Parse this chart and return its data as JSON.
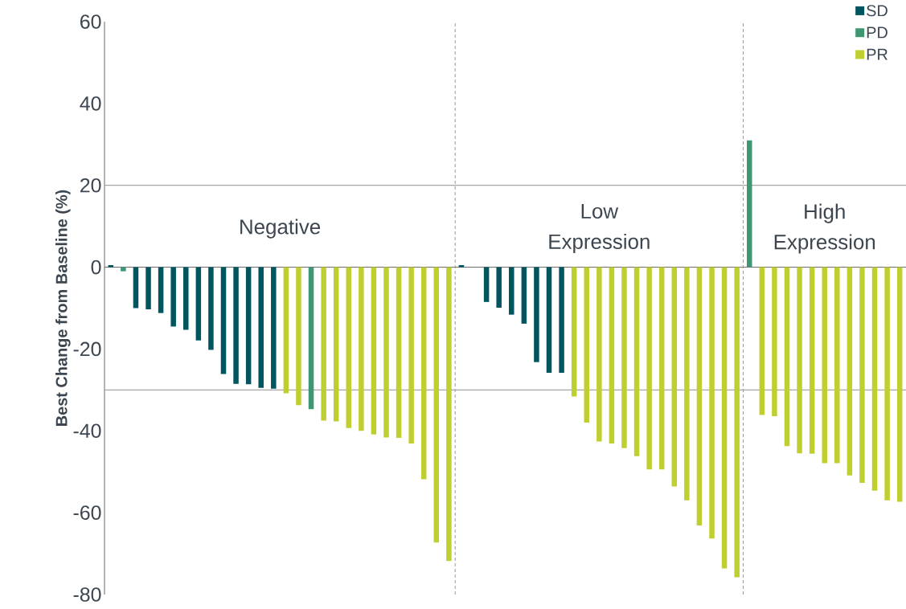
{
  "chart_data": {
    "type": "bar",
    "ylabel": "Best Change from Baseline (%)",
    "categories": [
      null,
      null,
      null,
      null,
      null,
      null,
      null,
      null,
      null,
      null,
      null,
      null,
      null,
      null,
      null,
      null,
      null,
      null,
      null,
      null,
      null,
      null,
      null,
      null,
      null,
      null,
      null,
      null,
      null,
      null,
      null,
      null,
      null,
      null,
      null,
      null,
      null,
      null,
      null,
      null,
      null,
      null,
      null,
      null,
      null,
      null,
      null,
      null,
      null,
      null,
      null,
      null,
      null,
      null,
      null,
      null,
      null,
      null,
      null,
      null,
      null,
      null,
      null,
      null
    ],
    "series": [
      {
        "name": "SD",
        "color": "#00555f",
        "values": [
          0.5,
          null,
          -10.0,
          -10.3,
          -11.2,
          -14.5,
          -15.3,
          -17.9,
          -20.2,
          -26.1,
          -28.5,
          -28.6,
          -29.5,
          -29.7,
          null,
          null,
          null,
          null,
          null,
          null,
          null,
          null,
          null,
          null,
          null,
          null,
          null,
          null,
          0.5,
          0,
          -8.5,
          -9.9,
          -11.6,
          -13.8,
          -23.2,
          -25.8,
          -25.8,
          null,
          null,
          null,
          null,
          null,
          null,
          null,
          null,
          null,
          null,
          null,
          null,
          null,
          null,
          null,
          null,
          null,
          null,
          null,
          null,
          null,
          null,
          null,
          null,
          null,
          null,
          null
        ]
      },
      {
        "name": "PD",
        "color": "#3e9673",
        "values": [
          null,
          -1.0,
          null,
          null,
          null,
          null,
          null,
          null,
          null,
          null,
          null,
          null,
          null,
          null,
          null,
          null,
          -34.7,
          null,
          null,
          null,
          null,
          null,
          null,
          null,
          null,
          null,
          null,
          null,
          null,
          null,
          null,
          null,
          null,
          null,
          null,
          null,
          null,
          null,
          null,
          null,
          null,
          null,
          null,
          null,
          null,
          null,
          null,
          null,
          null,
          null,
          null,
          31.0,
          null,
          null,
          null,
          null,
          null,
          null,
          null,
          null,
          null,
          null,
          null,
          null
        ]
      },
      {
        "name": "PR",
        "color": "#c0cf30",
        "values": [
          null,
          null,
          null,
          null,
          null,
          null,
          null,
          null,
          null,
          null,
          null,
          null,
          null,
          null,
          -30.8,
          -33.7,
          null,
          -37.5,
          -37.7,
          -39.3,
          -40.0,
          -40.9,
          -41.6,
          -41.7,
          -43.1,
          -51.8,
          -67.3,
          -71.8,
          null,
          null,
          null,
          null,
          null,
          null,
          null,
          null,
          null,
          -31.6,
          -38.0,
          -42.6,
          -43.1,
          -44.2,
          -46.2,
          -49.4,
          -49.4,
          -53.6,
          -57.0,
          -63.1,
          -66.3,
          -73.6,
          -75.8,
          null,
          -36.1,
          -36.4,
          -43.7,
          -45.5,
          -45.6,
          -47.9,
          -47.9,
          -50.9,
          -52.7,
          -54.6,
          -57.0,
          -57.3
        ]
      }
    ],
    "stacked": true,
    "ylim": [
      -80,
      60
    ],
    "yticks": [
      -80,
      -60,
      -40,
      -20,
      0,
      20,
      40,
      60
    ],
    "tick_labels": "y",
    "legend": "top right",
    "ref_lines": [
      {
        "axis": "y",
        "value": 20,
        "color": "#a6a6a6"
      },
      {
        "axis": "y",
        "value": -30,
        "color": "#a6a6a6"
      }
    ],
    "annotations": [
      "Negative",
      "Low Expression",
      "High Expression"
    ]
  }
}
